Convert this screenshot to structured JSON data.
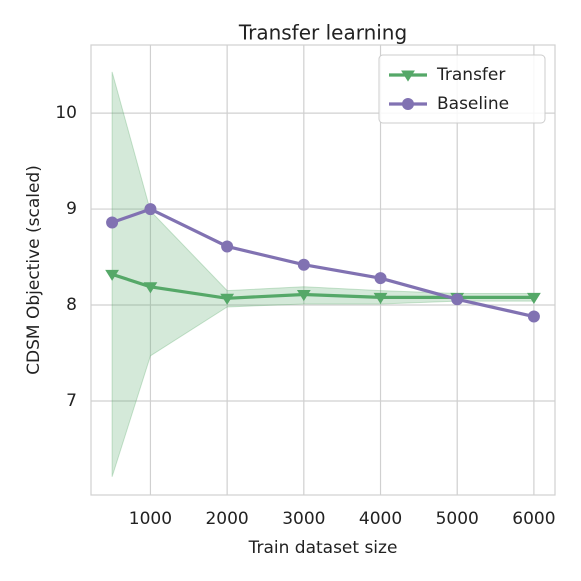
{
  "chart_data": {
    "type": "line",
    "title": "Transfer learning",
    "x_label": "Train dataset size",
    "y_label": "CDSM Objective (scaled)",
    "x": [
      500,
      1000,
      2000,
      3000,
      4000,
      5000,
      6000
    ],
    "series": [
      {
        "name": "Transfer",
        "color": "#55a868",
        "marker": "triangle-down",
        "values": [
          8.32,
          8.19,
          8.07,
          8.11,
          8.08,
          8.08,
          8.08
        ],
        "upper": [
          10.43,
          8.98,
          8.15,
          8.19,
          8.15,
          8.12,
          8.12
        ],
        "lower": [
          6.21,
          7.47,
          7.98,
          8.01,
          8.01,
          8.04,
          8.04
        ]
      },
      {
        "name": "Baseline",
        "color": "#8172b2",
        "marker": "circle",
        "values": [
          8.86,
          9.0,
          8.61,
          8.42,
          8.28,
          8.06,
          7.88
        ]
      }
    ],
    "xlim": [
      225,
      6275
    ],
    "ylim": [
      6.02,
      10.71
    ],
    "xticks": [
      1000,
      2000,
      3000,
      4000,
      5000,
      6000
    ],
    "yticks": [
      7,
      8,
      9,
      10
    ],
    "grid": true,
    "legend": "upper right"
  }
}
